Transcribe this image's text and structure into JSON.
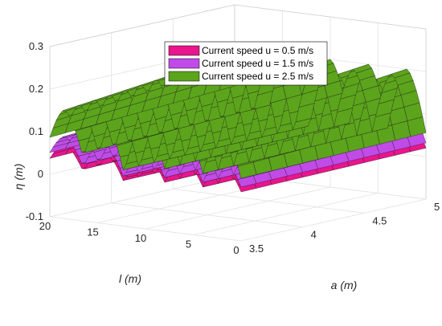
{
  "chart_data": {
    "type": "surface3d",
    "title": "",
    "xlabel": "a (m)",
    "ylabel": "l (m)",
    "zlabel": "η (m)",
    "xlim": [
      3.5,
      5
    ],
    "ylim": [
      0,
      20
    ],
    "zlim": [
      -0.1,
      0.3
    ],
    "x_ticks": [
      "3.5",
      "4",
      "4.5",
      "5"
    ],
    "y_ticks": [
      "0",
      "5",
      "10",
      "15",
      "20"
    ],
    "z_ticks": [
      "-0.1",
      "0",
      "0.1",
      "0.2",
      "0.3"
    ],
    "grid": true,
    "legend_position": "top-center",
    "series": [
      {
        "name": "Current speed u = 0.5 m/s",
        "color": "#e8158c",
        "peak": 0.1,
        "trough": 0.0
      },
      {
        "name": "Current speed u = 1.5 m/s",
        "color": "#c04be8",
        "peak": 0.12,
        "trough": 0.01
      },
      {
        "name": "Current speed u = 2.5 m/s",
        "color": "#5ca41c",
        "peak": 0.2,
        "trough": 0.02
      }
    ],
    "ridge_positions_l": [
      2,
      6,
      10,
      14.5,
      18.5
    ]
  }
}
